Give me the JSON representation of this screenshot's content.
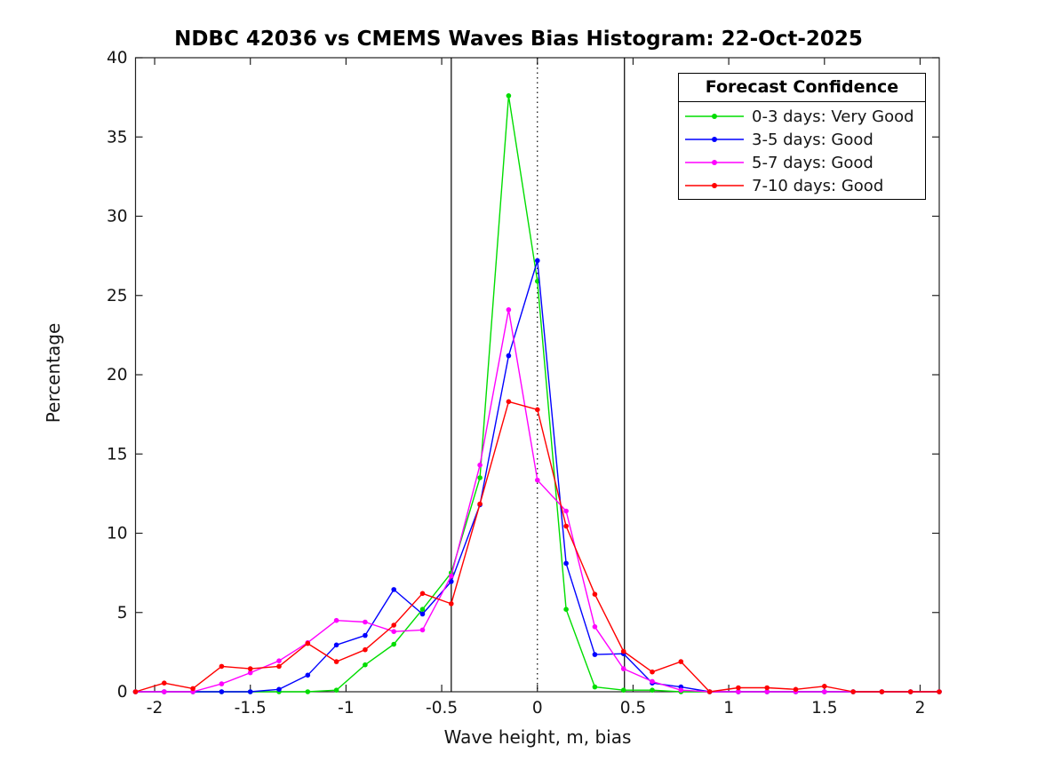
{
  "figure": {
    "title": "NDBC 42036 vs CMEMS Waves Bias Histogram: 22-Oct-2025"
  },
  "chart_data": {
    "type": "line",
    "title": "NDBC 42036 vs CMEMS Waves Bias Histogram: 22-Oct-2025",
    "xlabel": "Wave height, m, bias",
    "ylabel": "Percentage",
    "xlim": [
      -2.1,
      2.1
    ],
    "ylim": [
      0,
      40
    ],
    "grid": false,
    "marker": "dot",
    "xticks": [
      -2,
      -1.5,
      -1,
      -0.5,
      0,
      0.5,
      1,
      1.5,
      2
    ],
    "xtick_labels": [
      "-2",
      "-1.5",
      "-1",
      "-0.5",
      "0",
      "0.5",
      "1",
      "1.5",
      "2"
    ],
    "yticks": [
      0,
      5,
      10,
      15,
      20,
      25,
      30,
      35,
      40
    ],
    "ytick_labels": [
      "0",
      "5",
      "10",
      "15",
      "20",
      "25",
      "30",
      "35",
      "40"
    ],
    "x": [
      -2.1,
      -1.95,
      -1.8,
      -1.65,
      -1.5,
      -1.35,
      -1.2,
      -1.05,
      -0.9,
      -0.75,
      -0.6,
      -0.45,
      -0.3,
      -0.15,
      0,
      0.15,
      0.3,
      0.45,
      0.6,
      0.75,
      0.9,
      1.05,
      1.2,
      1.35,
      1.5,
      1.65,
      1.8,
      1.95,
      2.1
    ],
    "series": [
      {
        "name": "0-3 days: Very Good",
        "color": "#00dd00",
        "values": [
          0,
          0,
          0,
          0,
          0,
          0,
          0,
          0.1,
          1.7,
          3.0,
          5.2,
          7.5,
          13.5,
          37.6,
          25.9,
          5.2,
          0.3,
          0.1,
          0.1,
          0,
          0,
          0,
          0,
          0,
          0,
          0,
          0,
          0,
          0
        ]
      },
      {
        "name": "3-5 days: Good",
        "color": "#0000ff",
        "values": [
          0,
          0,
          0,
          0,
          0,
          0.15,
          1.05,
          2.95,
          3.55,
          6.45,
          4.9,
          6.95,
          11.8,
          21.2,
          27.2,
          8.1,
          2.35,
          2.4,
          0.55,
          0.3,
          0,
          0,
          0,
          0,
          0,
          0,
          0,
          0,
          0
        ]
      },
      {
        "name": "5-7 days: Good",
        "color": "#ff00ff",
        "values": [
          0,
          0,
          0,
          0.5,
          1.2,
          1.95,
          3.1,
          4.5,
          4.4,
          3.8,
          3.9,
          7.3,
          14.3,
          24.1,
          13.35,
          11.4,
          4.1,
          1.45,
          0.65,
          0.1,
          0,
          0,
          0,
          0,
          0,
          0,
          0,
          0,
          0
        ]
      },
      {
        "name": "7-10 days: Good",
        "color": "#ff0000",
        "values": [
          0,
          0.55,
          0.2,
          1.6,
          1.45,
          1.6,
          3.05,
          1.9,
          2.65,
          4.2,
          6.2,
          5.55,
          11.85,
          18.3,
          17.8,
          10.45,
          6.15,
          2.55,
          1.25,
          1.9,
          0,
          0.25,
          0.25,
          0.15,
          0.35,
          0,
          0,
          0,
          0
        ]
      }
    ],
    "reference_lines": [
      {
        "x": -0.45,
        "style": "solid",
        "color": "#000000"
      },
      {
        "x": 0,
        "style": "dotted",
        "color": "#000000"
      },
      {
        "x": 0.455,
        "style": "solid",
        "color": "#000000"
      }
    ],
    "legend": {
      "title": "Forecast Confidence",
      "position": "upper right"
    }
  }
}
